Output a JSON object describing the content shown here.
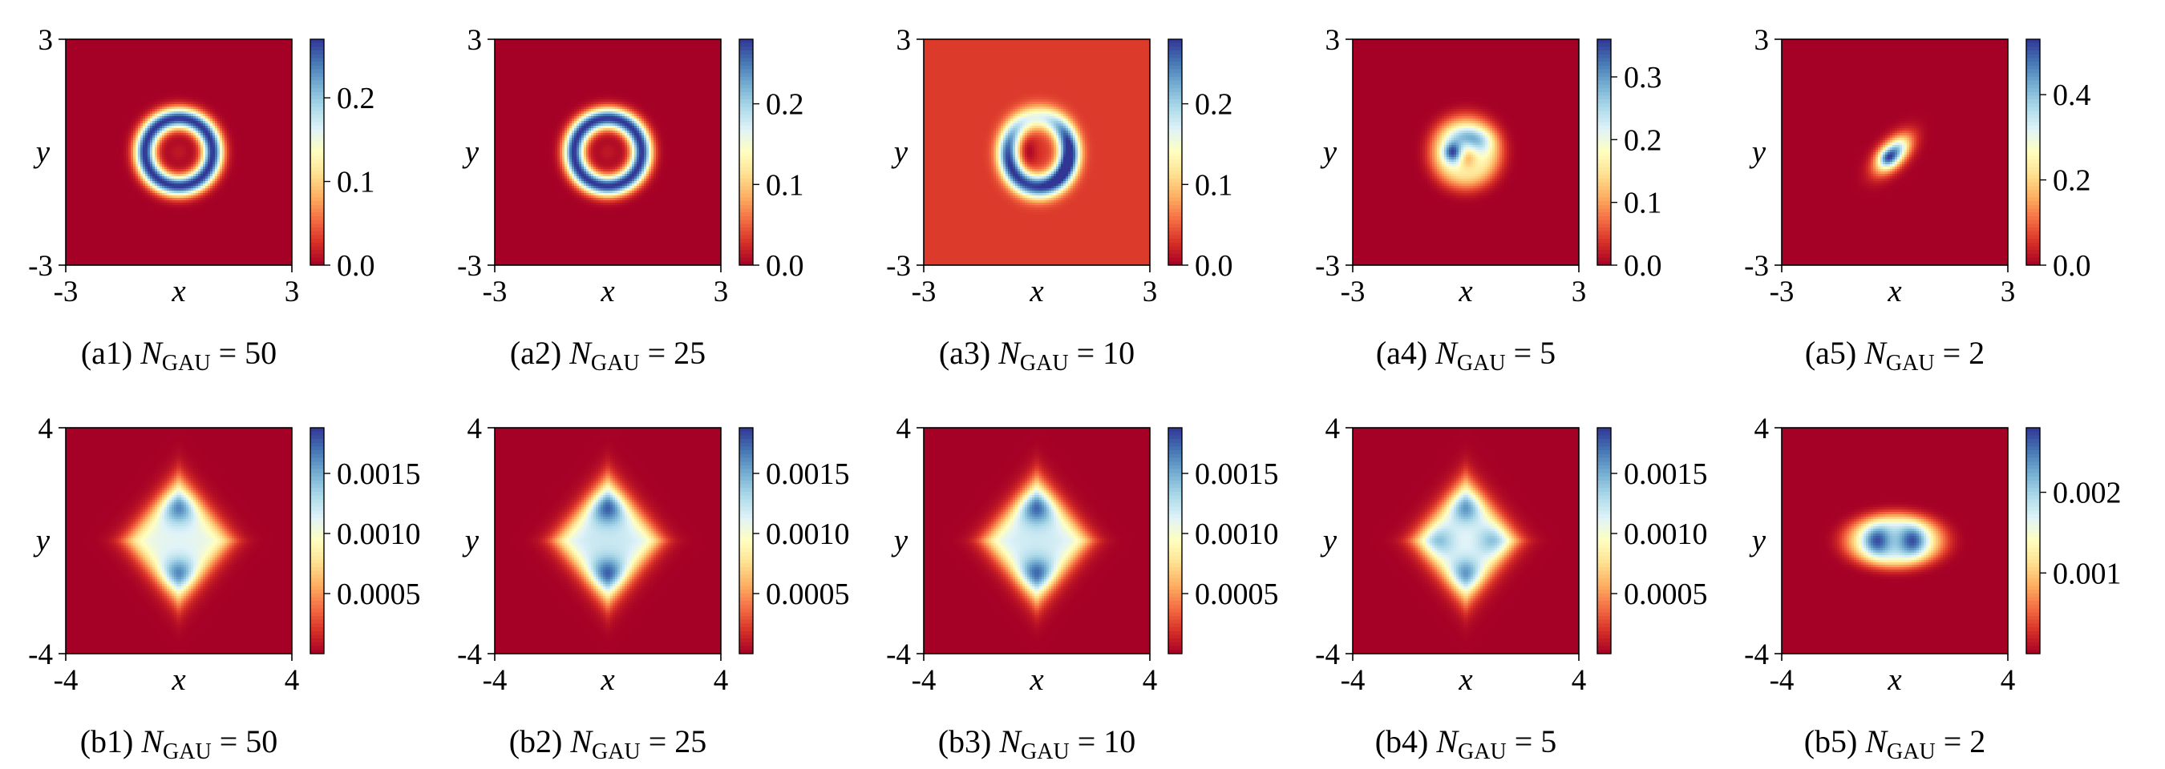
{
  "figure": {
    "colormap": "RdYlBu",
    "colormap_stops": [
      "#a50026",
      "#d73027",
      "#f46d43",
      "#fdae61",
      "#fee090",
      "#ffffbf",
      "#e0f3f8",
      "#abd9e9",
      "#74add1",
      "#4575b4",
      "#313695"
    ]
  },
  "chart_data": [
    {
      "id": "a1",
      "type": "heatmap",
      "caption_prefix": "(a1) ",
      "caption_var": "N",
      "caption_sub": "GAU",
      "caption_eq": " = ",
      "caption_value": "50",
      "xlabel": "x",
      "ylabel": "y",
      "xlim": [
        -3,
        3
      ],
      "ylim": [
        -3,
        3
      ],
      "x_ticks": [
        "-3",
        "3"
      ],
      "y_ticks": [
        "3",
        "-3"
      ],
      "colorbar": {
        "min": 0,
        "max": 0.27,
        "ticks": [
          0.0,
          0.1,
          0.2
        ],
        "tick_labels": [
          "0.0",
          "0.1",
          "0.2"
        ]
      },
      "pattern": {
        "kind": "ring",
        "r": 0.9,
        "w": 0.28,
        "core": 0.05,
        "peak": 0.27
      }
    },
    {
      "id": "a2",
      "type": "heatmap",
      "caption_prefix": "(a2) ",
      "caption_var": "N",
      "caption_sub": "GAU",
      "caption_eq": " = ",
      "caption_value": "25",
      "xlabel": "x",
      "ylabel": "y",
      "xlim": [
        -3,
        3
      ],
      "ylim": [
        -3,
        3
      ],
      "x_ticks": [
        "-3",
        "3"
      ],
      "y_ticks": [
        "3",
        "-3"
      ],
      "colorbar": {
        "min": 0,
        "max": 0.28,
        "ticks": [
          0.0,
          0.1,
          0.2
        ],
        "tick_labels": [
          "0.0",
          "0.1",
          "0.2"
        ]
      },
      "pattern": {
        "kind": "ring",
        "r": 0.9,
        "w": 0.28,
        "core": 0.05,
        "peak": 0.28
      }
    },
    {
      "id": "a3",
      "type": "heatmap",
      "caption_prefix": "(a3) ",
      "caption_var": "N",
      "caption_sub": "GAU",
      "caption_eq": " = ",
      "caption_value": "10",
      "xlabel": "x",
      "ylabel": "y",
      "xlim": [
        -3,
        3
      ],
      "ylim": [
        -3,
        3
      ],
      "x_ticks": [
        "-3",
        "3"
      ],
      "y_ticks": [
        "3",
        "-3"
      ],
      "colorbar": {
        "min": 0,
        "max": 0.28,
        "ticks": [
          0.0,
          0.1,
          0.2
        ],
        "tick_labels": [
          "0.0",
          "0.1",
          "0.2"
        ]
      },
      "pattern": {
        "kind": "ring_distorted",
        "r": 0.85,
        "w": 0.3,
        "core": 0.06,
        "peak": 0.28
      }
    },
    {
      "id": "a4",
      "type": "heatmap",
      "caption_prefix": "(a4) ",
      "caption_var": "N",
      "caption_sub": "GAU",
      "caption_eq": " = ",
      "caption_value": "5",
      "xlabel": "x",
      "ylabel": "y",
      "xlim": [
        -3,
        3
      ],
      "ylim": [
        -3,
        3
      ],
      "x_ticks": [
        "-3",
        "3"
      ],
      "y_ticks": [
        "3",
        "-3"
      ],
      "colorbar": {
        "min": 0,
        "max": 0.36,
        "ticks": [
          0.0,
          0.1,
          0.2,
          0.3
        ],
        "tick_labels": [
          "0.0",
          "0.1",
          "0.2",
          "0.3"
        ]
      },
      "pattern": {
        "kind": "blob_spots",
        "r": 0.9,
        "peak": 0.36
      }
    },
    {
      "id": "a5",
      "type": "heatmap",
      "caption_prefix": "(a5) ",
      "caption_var": "N",
      "caption_sub": "GAU",
      "caption_eq": " = ",
      "caption_value": "2",
      "xlabel": "x",
      "ylabel": "y",
      "xlim": [
        -3,
        3
      ],
      "ylim": [
        -3,
        3
      ],
      "x_ticks": [
        "-3",
        "3"
      ],
      "y_ticks": [
        "3",
        "-3"
      ],
      "colorbar": {
        "min": 0,
        "max": 0.53,
        "ticks": [
          0.0,
          0.2,
          0.4
        ],
        "tick_labels": [
          "0.0",
          "0.2",
          "0.4"
        ]
      },
      "pattern": {
        "kind": "small_blob",
        "peak": 0.53
      }
    },
    {
      "id": "b1",
      "type": "heatmap",
      "caption_prefix": "(b1) ",
      "caption_var": "N",
      "caption_sub": "GAU",
      "caption_eq": " = ",
      "caption_value": "50",
      "xlabel": "x",
      "ylabel": "y",
      "xlim": [
        -4,
        4
      ],
      "ylim": [
        -4,
        4
      ],
      "x_ticks": [
        "-4",
        "4"
      ],
      "y_ticks": [
        "4",
        "-4"
      ],
      "colorbar": {
        "min": 0,
        "max": 0.00188,
        "ticks": [
          0.0005,
          0.001,
          0.0015
        ],
        "tick_labels": [
          "0.0005",
          "0.0010",
          "0.0015"
        ]
      },
      "pattern": {
        "kind": "diamond",
        "lobes": "vertical",
        "depth": 0.88
      }
    },
    {
      "id": "b2",
      "type": "heatmap",
      "caption_prefix": "(b2) ",
      "caption_var": "N",
      "caption_sub": "GAU",
      "caption_eq": " = ",
      "caption_value": "25",
      "xlabel": "x",
      "ylabel": "y",
      "xlim": [
        -4,
        4
      ],
      "ylim": [
        -4,
        4
      ],
      "x_ticks": [
        "-4",
        "4"
      ],
      "y_ticks": [
        "4",
        "-4"
      ],
      "colorbar": {
        "min": 0,
        "max": 0.00188,
        "ticks": [
          0.0005,
          0.001,
          0.0015
        ],
        "tick_labels": [
          "0.0005",
          "0.0010",
          "0.0015"
        ]
      },
      "pattern": {
        "kind": "diamond",
        "lobes": "vertical",
        "depth": 0.93
      }
    },
    {
      "id": "b3",
      "type": "heatmap",
      "caption_prefix": "(b3) ",
      "caption_var": "N",
      "caption_sub": "GAU",
      "caption_eq": " = ",
      "caption_value": "10",
      "xlabel": "x",
      "ylabel": "y",
      "xlim": [
        -4,
        4
      ],
      "ylim": [
        -4,
        4
      ],
      "x_ticks": [
        "-4",
        "4"
      ],
      "y_ticks": [
        "4",
        "-4"
      ],
      "colorbar": {
        "min": 0,
        "max": 0.00188,
        "ticks": [
          0.0005,
          0.001,
          0.0015
        ],
        "tick_labels": [
          "0.0005",
          "0.0010",
          "0.0015"
        ]
      },
      "pattern": {
        "kind": "diamond",
        "lobes": "vertical",
        "depth": 0.92
      }
    },
    {
      "id": "b4",
      "type": "heatmap",
      "caption_prefix": "(b4) ",
      "caption_var": "N",
      "caption_sub": "GAU",
      "caption_eq": " = ",
      "caption_value": "5",
      "xlabel": "x",
      "ylabel": "y",
      "xlim": [
        -4,
        4
      ],
      "ylim": [
        -4,
        4
      ],
      "x_ticks": [
        "-4",
        "4"
      ],
      "y_ticks": [
        "4",
        "-4"
      ],
      "colorbar": {
        "min": 0,
        "max": 0.00188,
        "ticks": [
          0.0005,
          0.001,
          0.0015
        ],
        "tick_labels": [
          "0.0005",
          "0.0010",
          "0.0015"
        ]
      },
      "pattern": {
        "kind": "diamond",
        "lobes": "four",
        "depth": 0.86
      }
    },
    {
      "id": "b5",
      "type": "heatmap",
      "caption_prefix": "(b5) ",
      "caption_var": "N",
      "caption_sub": "GAU",
      "caption_eq": " = ",
      "caption_value": "2",
      "xlabel": "x",
      "ylabel": "y",
      "xlim": [
        -4,
        4
      ],
      "ylim": [
        -4,
        4
      ],
      "x_ticks": [
        "-4",
        "4"
      ],
      "y_ticks": [
        "4",
        "-4"
      ],
      "colorbar": {
        "min": 0,
        "max": 0.0028,
        "ticks": [
          0.001,
          0.002
        ],
        "tick_labels": [
          "0.001",
          "0.002"
        ]
      },
      "pattern": {
        "kind": "peanut",
        "depth": 0.96
      }
    }
  ]
}
